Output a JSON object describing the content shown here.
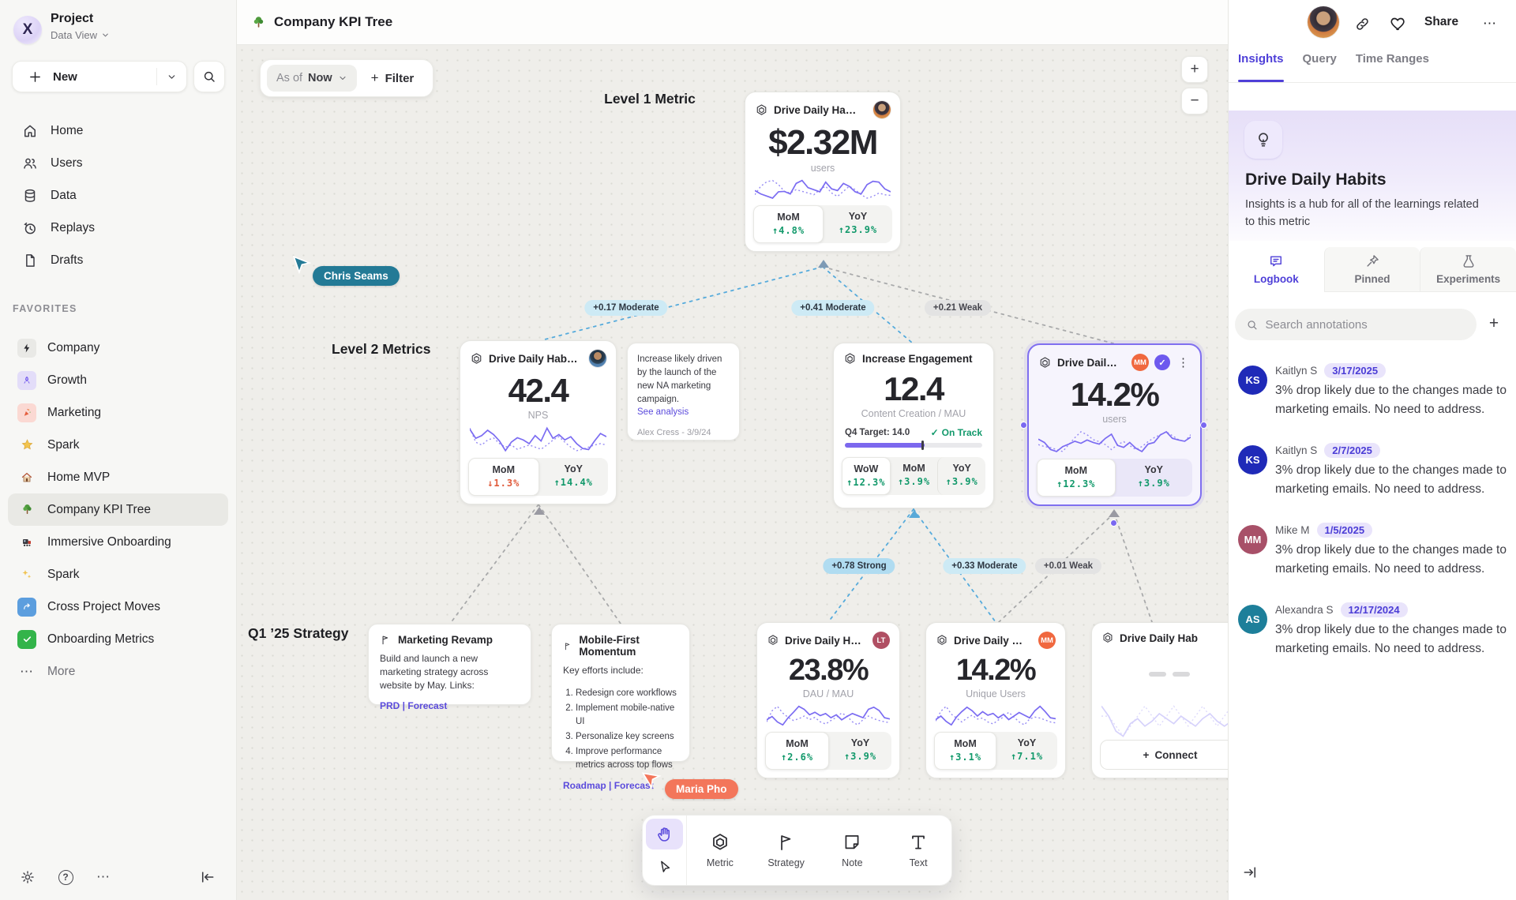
{
  "glyphs": {
    "plus": "+",
    "minus": "−",
    "check": "✓",
    "kebab": "⋮",
    "question": "?",
    "more": "⋯"
  },
  "sidebar": {
    "workspace": {
      "name": "Project",
      "view": "Data View",
      "logo_letter": "X"
    },
    "new_label": "New",
    "nav": [
      {
        "label": "Home"
      },
      {
        "label": "Users"
      },
      {
        "label": "Data"
      },
      {
        "label": "Replays"
      },
      {
        "label": "Drafts"
      }
    ],
    "favorites_label": "FAVORITES",
    "favorites": [
      {
        "label": "Company"
      },
      {
        "label": "Growth"
      },
      {
        "label": "Marketing"
      },
      {
        "label": "Spark"
      },
      {
        "label": "Home MVP"
      },
      {
        "label": "Company KPI Tree"
      },
      {
        "label": "Immersive Onboarding"
      },
      {
        "label": "Spark"
      },
      {
        "label": "Cross Project Moves"
      },
      {
        "label": "Onboarding Metrics"
      }
    ],
    "more_label": "More"
  },
  "topbar": {
    "title": "Company KPI Tree",
    "share_label": "Share"
  },
  "canvas": {
    "asof_label": "As of",
    "asof_value": "Now",
    "filter_label": "Filter",
    "level1_label": "Level 1 Metric",
    "level2_label": "Level 2 Metrics",
    "strategy_label": "Q1 ’25 Strategy",
    "edge_labels": [
      {
        "text": "+0.17 Moderate"
      },
      {
        "text": "+0.41 Moderate"
      },
      {
        "text": "+0.21 Weak"
      },
      {
        "text": "+0.78 Strong"
      },
      {
        "text": "+0.33 Moderate"
      },
      {
        "text": "+0.01 Weak"
      }
    ],
    "cursors": [
      {
        "name": "Chris Seams",
        "color": "#237a96"
      },
      {
        "name": "Maria Pho",
        "color": "#f3765b"
      }
    ],
    "cards": {
      "l1": {
        "title": "Drive Daily Habbits",
        "value": "$2.32M",
        "unit": "users",
        "stats": [
          {
            "label": "MoM",
            "delta": "↑4.8%",
            "tone": "up"
          },
          {
            "label": "YoY",
            "delta": "↑23.9%",
            "tone": "up"
          }
        ],
        "spark_solid": [
          38,
          30,
          25,
          20,
          35,
          36,
          30,
          55,
          62,
          45,
          40,
          35,
          58,
          42,
          38,
          55,
          48,
          35,
          30,
          52,
          60,
          58,
          42,
          35
        ],
        "spark_dotted": [
          30,
          55,
          68,
          72,
          60,
          40,
          35,
          45,
          40,
          35,
          30,
          45,
          55,
          35,
          25,
          40,
          55,
          45,
          30,
          20,
          25,
          35,
          30,
          28
        ]
      },
      "nps": {
        "title": "Drive Daily Habbits",
        "value": "42.4",
        "unit": "NPS",
        "stats": [
          {
            "label": "MoM",
            "delta": "↓1.3%",
            "tone": "down"
          },
          {
            "label": "YoY",
            "delta": "↑14.4%",
            "tone": "up"
          }
        ],
        "spark_solid": [
          62,
          45,
          50,
          60,
          52,
          40,
          22,
          38,
          46,
          42,
          35,
          50,
          40,
          64,
          45,
          52,
          42,
          48,
          35,
          26,
          24,
          40,
          54,
          48
        ],
        "spark_dotted": [
          72,
          52,
          48,
          55,
          58,
          50,
          45,
          48,
          42,
          45,
          48,
          45,
          42,
          48,
          55,
          60,
          52,
          45,
          40,
          42,
          45,
          48,
          50,
          48
        ]
      },
      "engagement": {
        "title": "Increase Engagement",
        "value": "12.4",
        "unit": "Content Creation / MAU",
        "target_label": "Q4 Target: 14.0",
        "status": "On Track",
        "progress_pct": 58,
        "tick_pct": 56,
        "stats": [
          {
            "label": "WoW",
            "delta": "↑12.3%",
            "tone": "up"
          },
          {
            "label": "MoM",
            "delta": "↑3.9%",
            "tone": "up"
          },
          {
            "label": "YoY",
            "delta": "↑3.9%",
            "tone": "up"
          }
        ]
      },
      "selected": {
        "title": "Drive Daily Habb..",
        "badge": "MM",
        "badge_color": "#f0683f",
        "verified_glyph": "✓",
        "value": "14.2%",
        "unit": "users",
        "stats": [
          {
            "label": "MoM",
            "delta": "↑12.3%",
            "tone": "up"
          },
          {
            "label": "YoY",
            "delta": "↑3.9%",
            "tone": "up"
          }
        ],
        "spark_solid": [
          60,
          52,
          35,
          30,
          42,
          48,
          55,
          50,
          58,
          52,
          48,
          62,
          72,
          45,
          40,
          52,
          38,
          30,
          48,
          52,
          70,
          78,
          62,
          58,
          55,
          65
        ],
        "spark_dotted": [
          35,
          33,
          32,
          30,
          28,
          35,
          42,
          48,
          45,
          40,
          38,
          35,
          30,
          35,
          38,
          34,
          30,
          33,
          38,
          42,
          45,
          48,
          44,
          40,
          38,
          45
        ]
      },
      "dau": {
        "title": "Drive Daily Habbits",
        "badge": "LT",
        "badge_color": "#b04f63",
        "value": "23.8%",
        "unit": "DAU / MAU",
        "stats": [
          {
            "label": "MoM",
            "delta": "↑2.6%",
            "tone": "up"
          },
          {
            "label": "YoY",
            "delta": "↑3.9%",
            "tone": "up"
          }
        ],
        "spark_solid": [
          30,
          38,
          25,
          18,
          35,
          48,
          62,
          55,
          42,
          48,
          40,
          45,
          35,
          42,
          30,
          38,
          45,
          40,
          35,
          55,
          60,
          52,
          35,
          32
        ],
        "spark_dotted": [
          35,
          60,
          70,
          55,
          45,
          38,
          42,
          48,
          40,
          45,
          35,
          30,
          38,
          45,
          55,
          48,
          35,
          28,
          40,
          48,
          42,
          38,
          35,
          33
        ]
      },
      "unique": {
        "title": "Drive Daily Habbits",
        "badge": "MM",
        "badge_color": "#f0683f",
        "value": "14.2%",
        "unit": "Unique Users",
        "stats": [
          {
            "label": "MoM",
            "delta": "↑3.1%",
            "tone": "up"
          },
          {
            "label": "YoY",
            "delta": "↑7.1%",
            "tone": "up"
          }
        ],
        "spark_solid": [
          32,
          40,
          28,
          20,
          38,
          50,
          60,
          52,
          40,
          50,
          42,
          46,
          36,
          44,
          32,
          40,
          48,
          42,
          36,
          52,
          62,
          50,
          36,
          34
        ],
        "spark_dotted": [
          38,
          58,
          68,
          52,
          44,
          36,
          44,
          50,
          42,
          44,
          36,
          32,
          40,
          46,
          56,
          46,
          36,
          30,
          42,
          46,
          44,
          40,
          36,
          34
        ]
      },
      "partial": {
        "title": "Drive Daily Hab",
        "connect_label": "Connect",
        "spark_solid": [
          50,
          42,
          30,
          26,
          36,
          40,
          34,
          38,
          44,
          40,
          36,
          42,
          38,
          34,
          40,
          44,
          38,
          34,
          38,
          42
        ],
        "spark_dotted": [
          30,
          30,
          28,
          26,
          28,
          30,
          32,
          30,
          28,
          30,
          32,
          30,
          28,
          30,
          32,
          30,
          28,
          30,
          32,
          30
        ]
      }
    },
    "notes": {
      "analysis": {
        "text": "Increase likely driven by the launch of the new NA marketing campaign.",
        "link": "See analysis",
        "author": "Alex Cress - 3/9/24"
      },
      "marketing": {
        "title": "Marketing Revamp",
        "body": "Build and launch a new marketing strategy across website by May. Links:",
        "links": "PRD | Forecast"
      },
      "mobile": {
        "title": "Mobile-First Momentum",
        "intro": "Key efforts include:",
        "items": [
          "Redesign core workflows",
          "Implement mobile-native UI",
          "Personalize key screens",
          "Improve performance metrics across top flows"
        ],
        "links": "Roadmap | Forecast"
      }
    },
    "toolbar": {
      "tools": [
        {
          "label": "Metric"
        },
        {
          "label": "Strategy"
        },
        {
          "label": "Note"
        },
        {
          "label": "Text"
        }
      ]
    }
  },
  "panel": {
    "tabs": [
      {
        "label": "Insights"
      },
      {
        "label": "Query"
      },
      {
        "label": "Time Ranges"
      }
    ],
    "title": "Drive Daily Habits",
    "description": "Insights is a hub for all of the learnings related to this metric",
    "subtabs": [
      {
        "label": "Logbook"
      },
      {
        "label": "Pinned"
      },
      {
        "label": "Experiments"
      }
    ],
    "search_placeholder": "Search annotations",
    "annotations": [
      {
        "initials": "KS",
        "color": "#1f2ab8",
        "name": "Kaitlyn S",
        "date": "3/17/2025",
        "text": "3% drop likely due to the changes made to marketing emails. No need to address."
      },
      {
        "initials": "KS",
        "color": "#1f2ab8",
        "name": "Kaitlyn S",
        "date": "2/7/2025",
        "text": "3% drop likely due to the changes made to marketing emails. No need to address."
      },
      {
        "initials": "MM",
        "color": "#a85068",
        "name": "Mike M",
        "date": "1/5/2025",
        "text": "3% drop likely due to the changes made to marketing emails. No need to address."
      },
      {
        "initials": "AS",
        "color": "#1d7f9a",
        "name": "Alexandra S",
        "date": "12/17/2024",
        "text": "3% drop likely due to the changes made to marketing emails. No need to address."
      }
    ]
  }
}
